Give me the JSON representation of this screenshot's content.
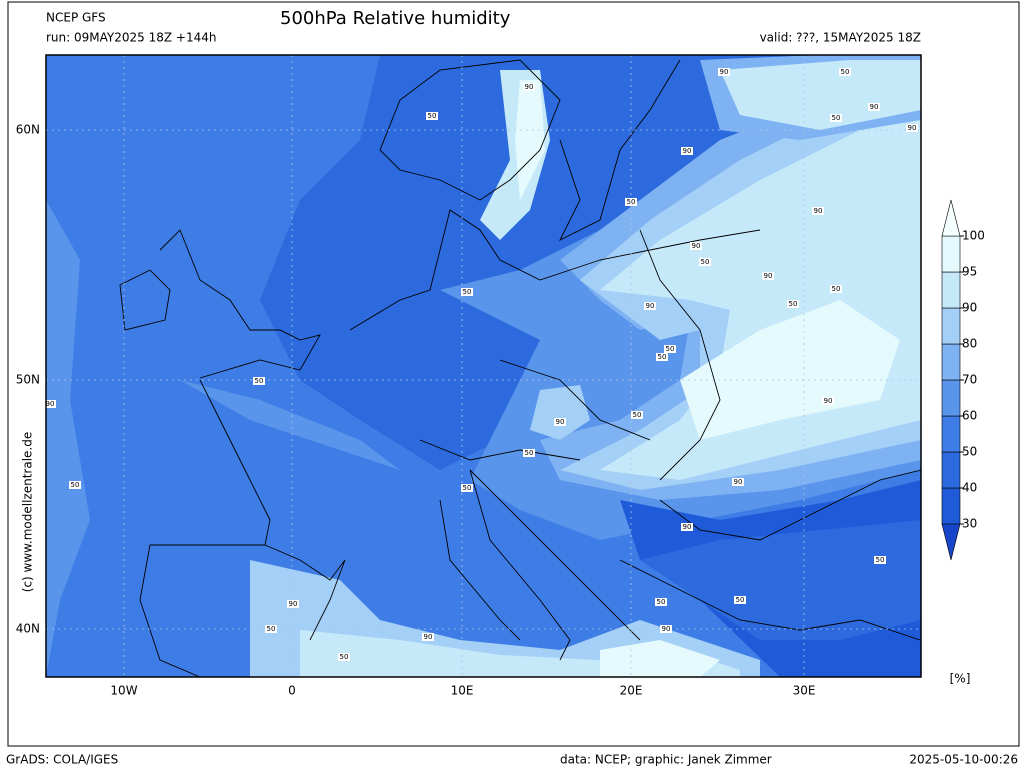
{
  "header": {
    "model": "NCEP GFS",
    "title": "500hPa Relative humidity",
    "run": "run: 09MAY2025 18Z +144h",
    "valid": "valid: ???, 15MAY2025 18Z"
  },
  "map": {
    "lat_labels": [
      "60N",
      "50N",
      "40N"
    ],
    "lon_labels": [
      "10W",
      "0",
      "10E",
      "20E",
      "30E"
    ],
    "contour_labels": [
      "90",
      "50",
      "90",
      "50",
      "90",
      "50",
      "90",
      "90",
      "50",
      "90",
      "90",
      "50",
      "90",
      "50",
      "50",
      "50",
      "90",
      "50",
      "50",
      "90",
      "90",
      "50",
      "50",
      "90",
      "50",
      "50",
      "50",
      "90",
      "90",
      "50",
      "90",
      "90",
      "50",
      "90",
      "50",
      "50",
      "50"
    ]
  },
  "colorbar": {
    "levels": [
      30,
      40,
      50,
      60,
      70,
      80,
      90,
      95,
      100
    ],
    "colors": [
      "#1f5bd8",
      "#2c6ade",
      "#3f7de6",
      "#5a95ec",
      "#7eb2f2",
      "#a4cff6",
      "#c6e9fa",
      "#e4fafc"
    ],
    "below_color": "#1747c8",
    "above_color": "#f4ffff",
    "unit": "[%]"
  },
  "watermark": "(c) www.modellzentrale.de",
  "footer": {
    "left": "GrADS: COLA/IGES",
    "credit": "data: NCEP; graphic: Janek Zimmer",
    "timestamp": "2025-05-10-00:26"
  }
}
